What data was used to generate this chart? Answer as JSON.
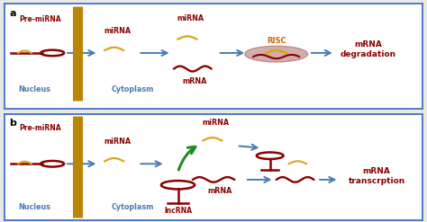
{
  "bg_color": "#e8e8e8",
  "panel_bg": "#ffffff",
  "border_color": "#4472c4",
  "dark_red": "#8B0000",
  "crimson": "#B22222",
  "dark_yellow": "#DAA520",
  "gold": "#FFD700",
  "blue_arrow": "#4a7ab5",
  "green_arrow": "#228B22",
  "risc_fill": "#c8a0a0",
  "risc_edge": "#c08080",
  "risc_text_color": "#cc6600",
  "label_blue": "#4a7ab5",
  "wall_color": "#B8860B",
  "mRNA_color": "#8B0000",
  "panel_a_label": "a",
  "panel_b_label": "b",
  "pre_mirna_label": "Pre-miRNA",
  "mirna_label": "miRNA",
  "mrna_label": "mRNA",
  "nucleus_label": "Nucleus",
  "cytoplasm_label": "Cytoplasm",
  "risc_label": "RISC",
  "lncrna_label": "lncRNA",
  "mrna_degradation": "mRNA\ndegradation",
  "mrna_transcription": "mRNA\ntranscrption"
}
